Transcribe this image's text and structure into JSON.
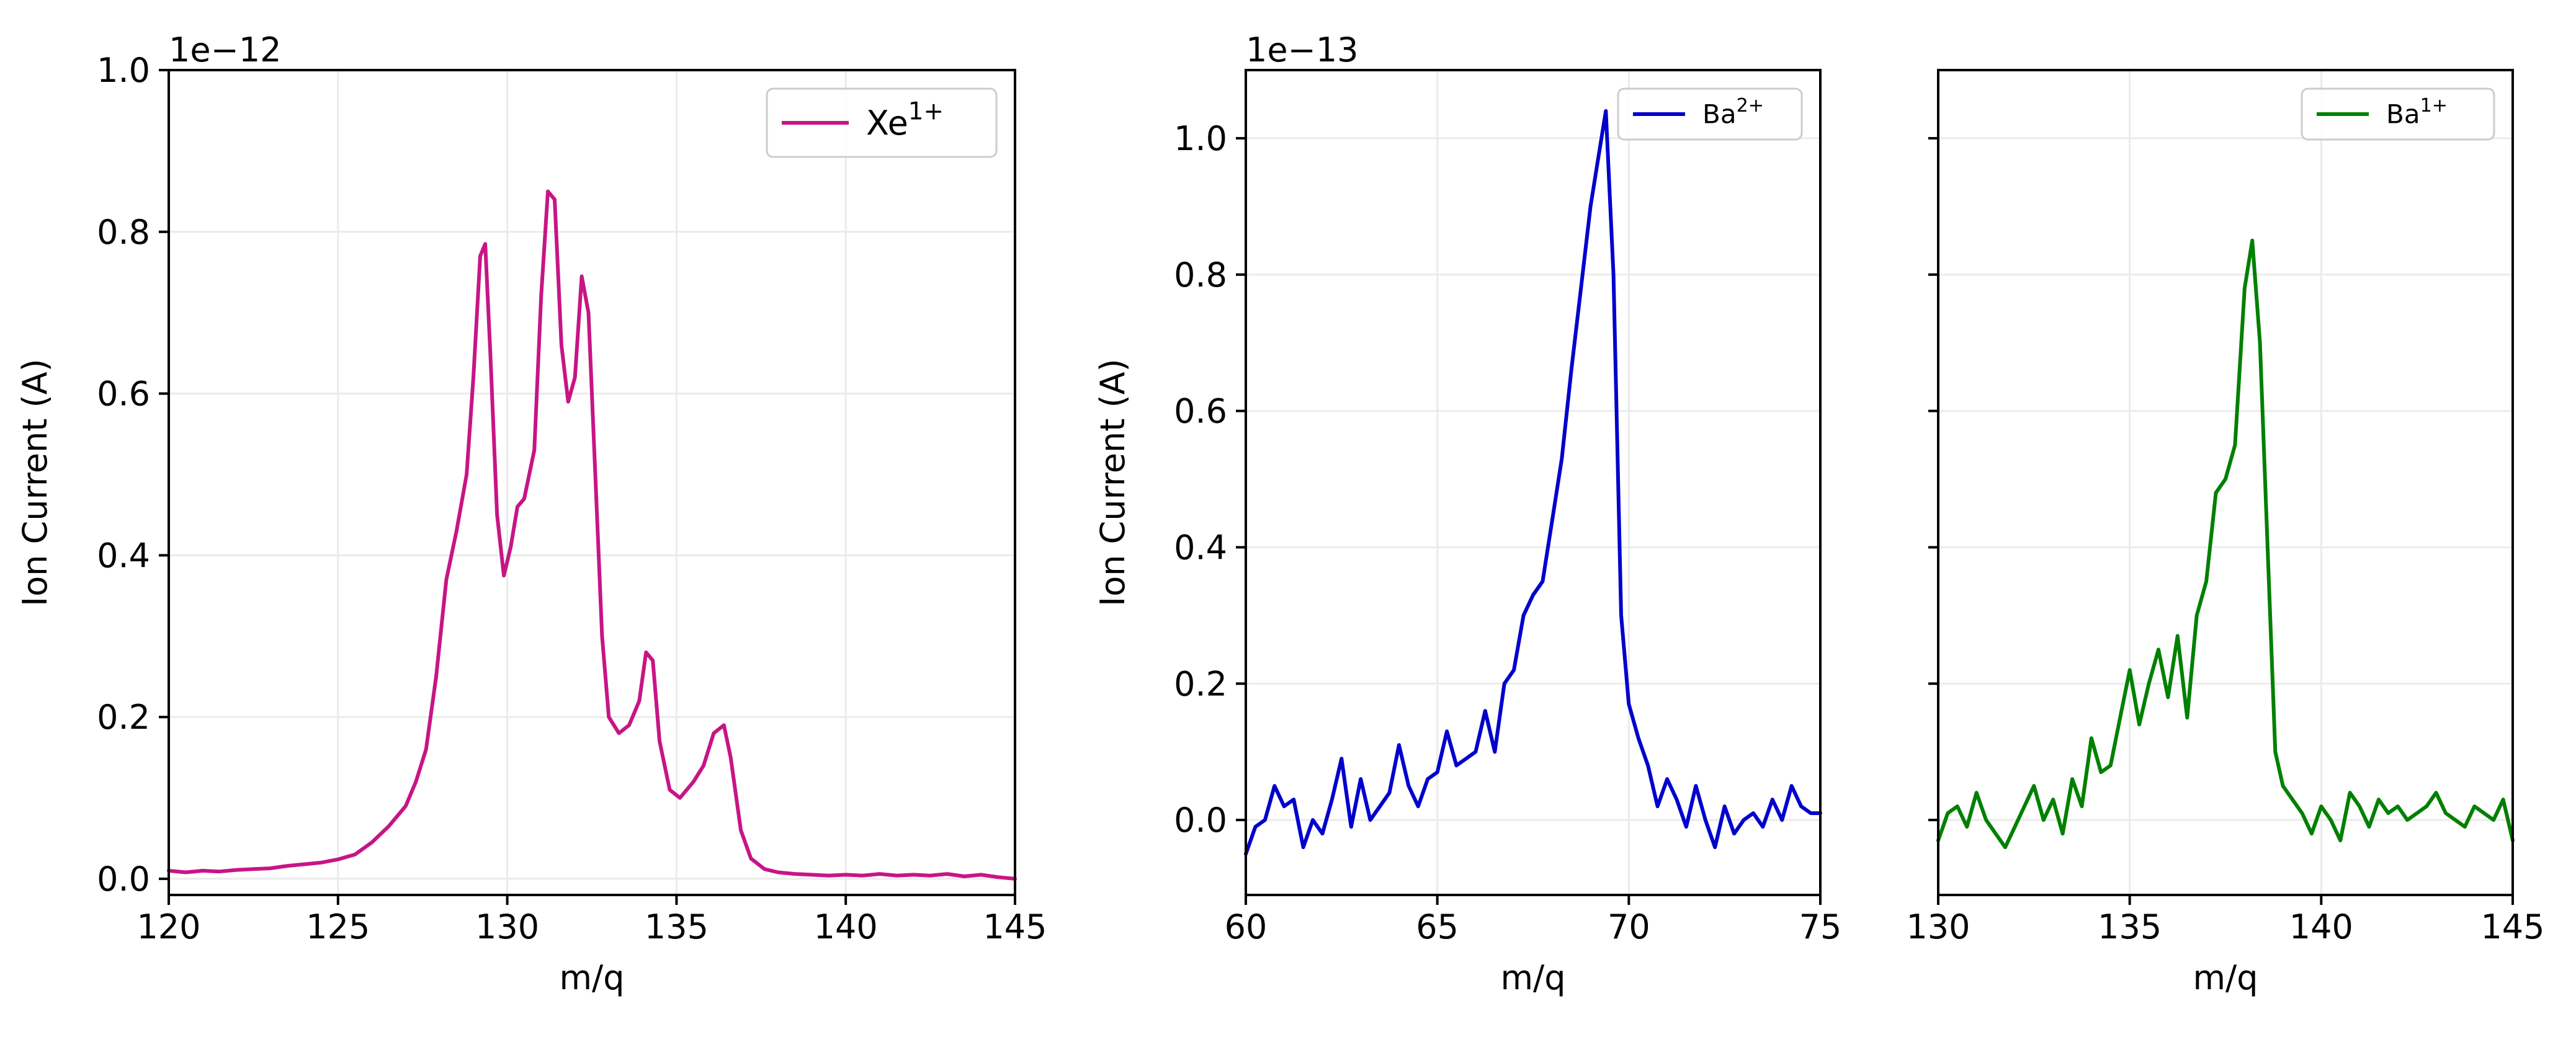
{
  "chart_data": [
    {
      "type": "line",
      "offset_label": "1e−12",
      "xlabel": "m/q",
      "ylabel": "Ion Current (A)",
      "xlim": [
        120,
        145
      ],
      "ylim": [
        -0.02,
        1.0
      ],
      "xticks": [
        120,
        125,
        130,
        135,
        140,
        145
      ],
      "xtick_labels": [
        "120",
        "125",
        "130",
        "135",
        "140",
        "145"
      ],
      "yticks": [
        0.0,
        0.2,
        0.4,
        0.6,
        0.8,
        1.0
      ],
      "ytick_labels": [
        "0.0",
        "0.2",
        "0.4",
        "0.6",
        "0.8",
        "1.0"
      ],
      "grid": true,
      "legend_position": "top-right",
      "series": [
        {
          "name": "Xe",
          "name_sup": "1+",
          "color": "#c71585",
          "x": [
            120,
            120.5,
            121,
            121.5,
            122,
            122.5,
            123,
            123.5,
            124,
            124.5,
            125,
            125.5,
            126,
            126.5,
            127,
            127.3,
            127.6,
            127.9,
            128.2,
            128.5,
            128.8,
            129,
            129.2,
            129.35,
            129.5,
            129.7,
            129.9,
            130.1,
            130.3,
            130.5,
            130.8,
            131,
            131.2,
            131.4,
            131.6,
            131.8,
            132,
            132.2,
            132.4,
            132.6,
            132.8,
            133,
            133.3,
            133.6,
            133.9,
            134.1,
            134.3,
            134.5,
            134.8,
            135.1,
            135.5,
            135.8,
            136.1,
            136.4,
            136.6,
            136.9,
            137.2,
            137.6,
            138,
            138.5,
            139,
            139.5,
            140,
            140.5,
            141,
            141.5,
            142,
            142.5,
            143,
            143.5,
            144,
            144.5,
            145
          ],
          "y": [
            0.01,
            0.008,
            0.01,
            0.009,
            0.011,
            0.012,
            0.013,
            0.016,
            0.018,
            0.02,
            0.024,
            0.03,
            0.045,
            0.065,
            0.09,
            0.12,
            0.16,
            0.25,
            0.37,
            0.43,
            0.5,
            0.62,
            0.77,
            0.785,
            0.65,
            0.45,
            0.375,
            0.41,
            0.46,
            0.47,
            0.53,
            0.72,
            0.85,
            0.84,
            0.66,
            0.59,
            0.62,
            0.745,
            0.7,
            0.5,
            0.3,
            0.2,
            0.18,
            0.19,
            0.22,
            0.28,
            0.27,
            0.17,
            0.11,
            0.1,
            0.12,
            0.14,
            0.18,
            0.19,
            0.15,
            0.06,
            0.025,
            0.012,
            0.008,
            0.006,
            0.005,
            0.004,
            0.005,
            0.004,
            0.006,
            0.004,
            0.005,
            0.004,
            0.006,
            0.003,
            0.005,
            0.002,
            0.0
          ]
        }
      ]
    },
    {
      "type": "line",
      "offset_label": "1e−13",
      "xlabel": "m/q",
      "ylabel": "Ion Current (A)",
      "xlim": [
        60,
        75
      ],
      "ylim": [
        -0.11,
        1.1
      ],
      "xticks": [
        60,
        65,
        70,
        75
      ],
      "xtick_labels": [
        "60",
        "65",
        "70",
        "75"
      ],
      "yticks": [
        0.0,
        0.2,
        0.4,
        0.6,
        0.8,
        1.0
      ],
      "ytick_labels": [
        "0.0",
        "0.2",
        "0.4",
        "0.6",
        "0.8",
        "1.0"
      ],
      "grid": true,
      "legend_position": "top-right",
      "series": [
        {
          "name": "Ba",
          "name_sup": "2+",
          "color": "#0000cd",
          "x": [
            60,
            60.25,
            60.5,
            60.75,
            61,
            61.25,
            61.5,
            61.75,
            62,
            62.25,
            62.5,
            62.75,
            63,
            63.25,
            63.5,
            63.75,
            64,
            64.25,
            64.5,
            64.75,
            65,
            65.25,
            65.5,
            65.75,
            66,
            66.25,
            66.5,
            66.75,
            67,
            67.25,
            67.5,
            67.75,
            68,
            68.25,
            68.5,
            68.75,
            69,
            69.2,
            69.4,
            69.6,
            69.8,
            70,
            70.25,
            70.5,
            70.75,
            71,
            71.25,
            71.5,
            71.75,
            72,
            72.25,
            72.5,
            72.75,
            73,
            73.25,
            73.5,
            73.75,
            74,
            74.25,
            74.5,
            74.75,
            75
          ],
          "y": [
            -0.05,
            -0.01,
            0.0,
            0.05,
            0.02,
            0.03,
            -0.04,
            0.0,
            -0.02,
            0.03,
            0.09,
            -0.01,
            0.06,
            0.0,
            0.02,
            0.04,
            0.11,
            0.05,
            0.02,
            0.06,
            0.07,
            0.13,
            0.08,
            0.09,
            0.1,
            0.16,
            0.1,
            0.2,
            0.22,
            0.3,
            0.33,
            0.35,
            0.44,
            0.53,
            0.66,
            0.78,
            0.9,
            0.97,
            1.04,
            0.8,
            0.3,
            0.17,
            0.12,
            0.08,
            0.02,
            0.06,
            0.03,
            -0.01,
            0.05,
            0.0,
            -0.04,
            0.02,
            -0.02,
            0.0,
            0.01,
            -0.01,
            0.03,
            0.0,
            0.05,
            0.02,
            0.01,
            0.01
          ]
        }
      ]
    },
    {
      "type": "line",
      "offset_label": "",
      "xlabel": "m/q",
      "ylabel": "",
      "xlim": [
        130,
        145
      ],
      "ylim": [
        -0.11,
        1.1
      ],
      "xticks": [
        130,
        135,
        140,
        145
      ],
      "xtick_labels": [
        "130",
        "135",
        "140",
        "145"
      ],
      "yticks": [
        0.0,
        0.2,
        0.4,
        0.6,
        0.8,
        1.0
      ],
      "ytick_labels": [],
      "grid": true,
      "legend_position": "top-right",
      "series": [
        {
          "name": "Ba",
          "name_sup": "1+",
          "color": "#008000",
          "x": [
            130,
            130.25,
            130.5,
            130.75,
            131,
            131.25,
            131.5,
            131.75,
            132,
            132.25,
            132.5,
            132.75,
            133,
            133.25,
            133.5,
            133.75,
            134,
            134.25,
            134.5,
            134.75,
            135,
            135.25,
            135.5,
            135.75,
            136,
            136.25,
            136.5,
            136.75,
            137,
            137.25,
            137.5,
            137.75,
            138,
            138.2,
            138.4,
            138.6,
            138.8,
            139,
            139.25,
            139.5,
            139.75,
            140,
            140.25,
            140.5,
            140.75,
            141,
            141.25,
            141.5,
            141.75,
            142,
            142.25,
            142.5,
            142.75,
            143,
            143.25,
            143.5,
            143.75,
            144,
            144.25,
            144.5,
            144.75,
            145
          ],
          "y": [
            -0.03,
            0.01,
            0.02,
            -0.01,
            0.04,
            0.0,
            -0.02,
            -0.04,
            -0.01,
            0.02,
            0.05,
            0.0,
            0.03,
            -0.02,
            0.06,
            0.02,
            0.12,
            0.07,
            0.08,
            0.15,
            0.22,
            0.14,
            0.2,
            0.25,
            0.18,
            0.27,
            0.15,
            0.3,
            0.35,
            0.48,
            0.5,
            0.55,
            0.78,
            0.85,
            0.7,
            0.4,
            0.1,
            0.05,
            0.03,
            0.01,
            -0.02,
            0.02,
            0.0,
            -0.03,
            0.04,
            0.02,
            -0.01,
            0.03,
            0.01,
            0.02,
            0.0,
            0.01,
            0.02,
            0.04,
            0.01,
            0.0,
            -0.01,
            0.02,
            0.01,
            0.0,
            0.03,
            -0.03
          ]
        }
      ]
    }
  ]
}
